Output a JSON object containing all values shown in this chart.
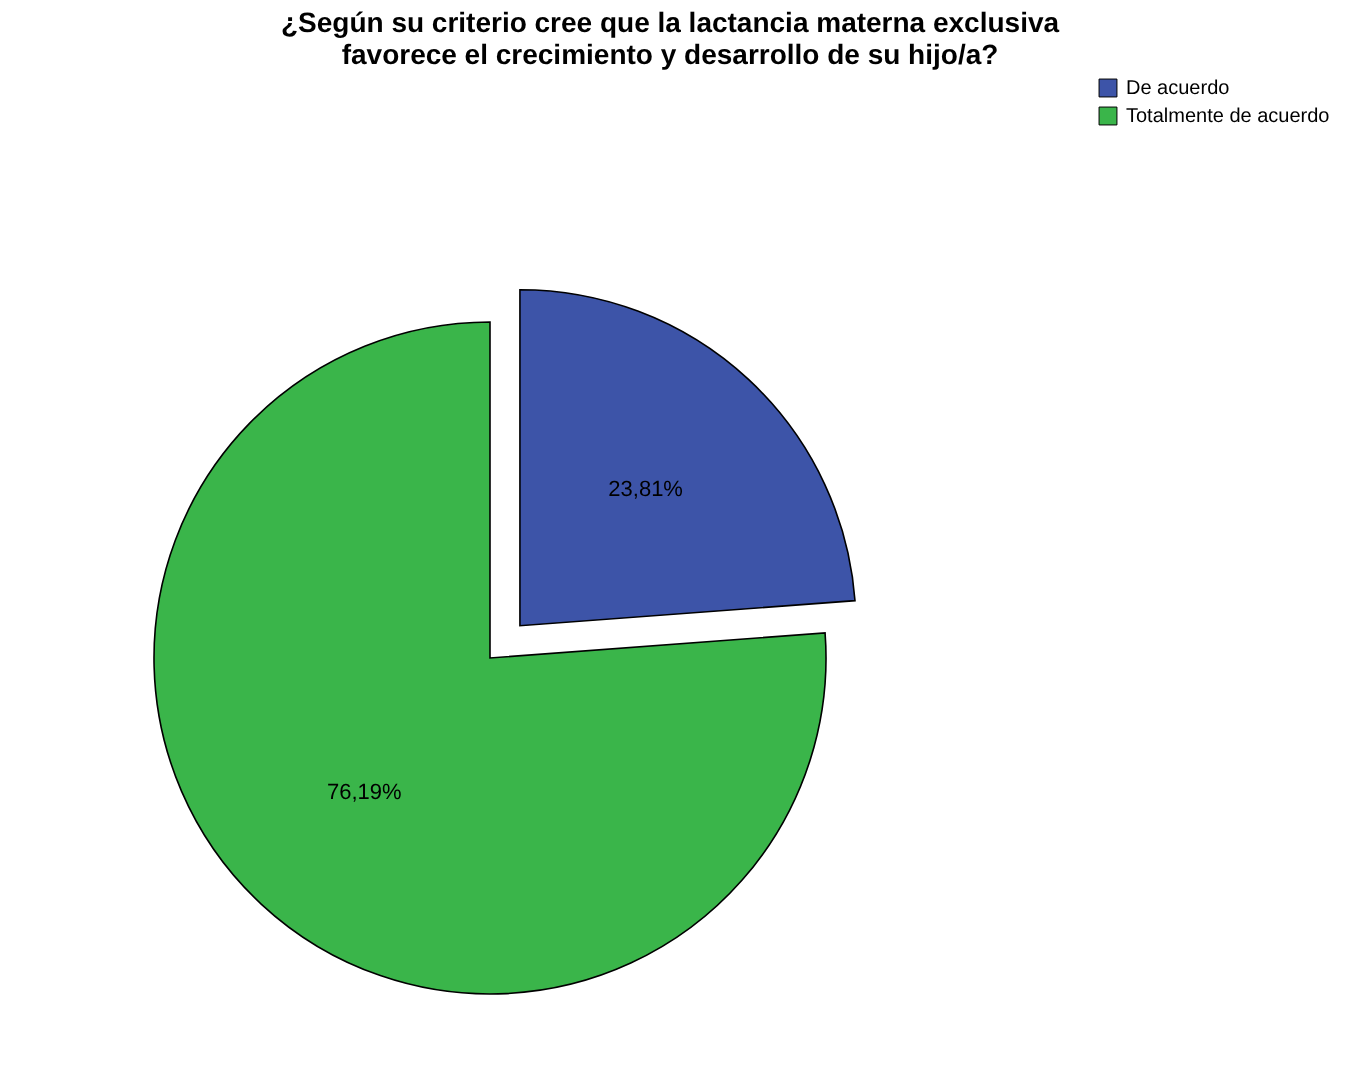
{
  "chart_data": {
    "type": "pie",
    "title": "¿Según su criterio cree que la lactancia materna exclusiva favorece el crecimiento y desarrollo de su hijo/a?",
    "categories": [
      "De acuerdo",
      "Totalmente de acuerdo"
    ],
    "values": [
      23.81,
      76.19
    ],
    "colors": [
      "#3d54a8",
      "#3ab54a"
    ],
    "value_labels": [
      "23,81%",
      "76,19%"
    ],
    "legend": "top right"
  }
}
